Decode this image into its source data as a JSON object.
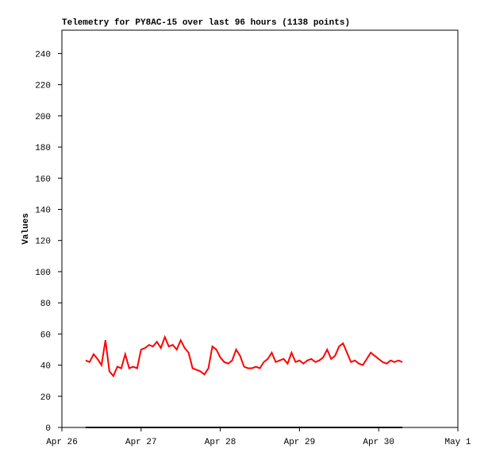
{
  "chart_data": {
    "type": "line",
    "title": "Telemetry for PY8AC-15 over last 96 hours (1138 points)",
    "y_label": "Values",
    "xlim": [
      0,
      5
    ],
    "xticks": [
      {
        "value": 0,
        "label": "Apr 26"
      },
      {
        "value": 1,
        "label": "Apr 27"
      },
      {
        "value": 2,
        "label": "Apr 28"
      },
      {
        "value": 3,
        "label": "Apr 29"
      },
      {
        "value": 4,
        "label": "Apr 30"
      },
      {
        "value": 5,
        "label": "May 1"
      }
    ],
    "ylim": [
      0,
      255
    ],
    "yticks": [
      0,
      20,
      40,
      60,
      80,
      100,
      120,
      140,
      160,
      180,
      200,
      220,
      240
    ],
    "series": [
      {
        "color": "#ff0000",
        "x": [
          0.3,
          0.35,
          0.4,
          0.45,
          0.5,
          0.55,
          0.6,
          0.65,
          0.7,
          0.75,
          0.8,
          0.85,
          0.9,
          0.95,
          1,
          1.05,
          1.1,
          1.15,
          1.2,
          1.25,
          1.3,
          1.35,
          1.4,
          1.45,
          1.5,
          1.55,
          1.6,
          1.65,
          1.7,
          1.75,
          1.8,
          1.85,
          1.9,
          1.95,
          2,
          2.05,
          2.1,
          2.15,
          2.2,
          2.25,
          2.3,
          2.35,
          2.4,
          2.45,
          2.5,
          2.55,
          2.6,
          2.65,
          2.7,
          2.75,
          2.8,
          2.85,
          2.9,
          2.95,
          3,
          3.05,
          3.1,
          3.15,
          3.2,
          3.25,
          3.3,
          3.35,
          3.4,
          3.45,
          3.5,
          3.55,
          3.6,
          3.65,
          3.7,
          3.75,
          3.8,
          3.85,
          3.9,
          3.95,
          4,
          4.05,
          4.1,
          4.15,
          4.2,
          4.25,
          4.3
        ],
        "values": [
          43,
          42,
          47,
          44,
          40,
          56,
          36,
          33,
          39,
          38,
          47,
          38,
          39,
          38,
          50,
          51,
          53,
          52,
          55,
          51,
          58,
          52,
          53,
          50,
          56,
          51,
          48,
          38,
          37,
          36,
          34,
          38,
          52,
          50,
          45,
          42,
          41,
          43,
          50,
          46,
          39,
          38,
          38,
          39,
          38,
          42,
          44,
          48,
          42,
          43,
          44,
          41,
          48,
          42,
          43,
          41,
          43,
          44,
          42,
          43,
          45,
          50,
          44,
          46,
          52,
          54,
          48,
          42,
          43,
          41,
          40,
          44,
          48,
          46,
          44,
          42,
          41,
          43,
          42,
          43,
          42
        ]
      },
      {
        "color": "#000000",
        "x": [
          0.3,
          4.3
        ],
        "values": [
          0,
          0
        ]
      }
    ]
  }
}
